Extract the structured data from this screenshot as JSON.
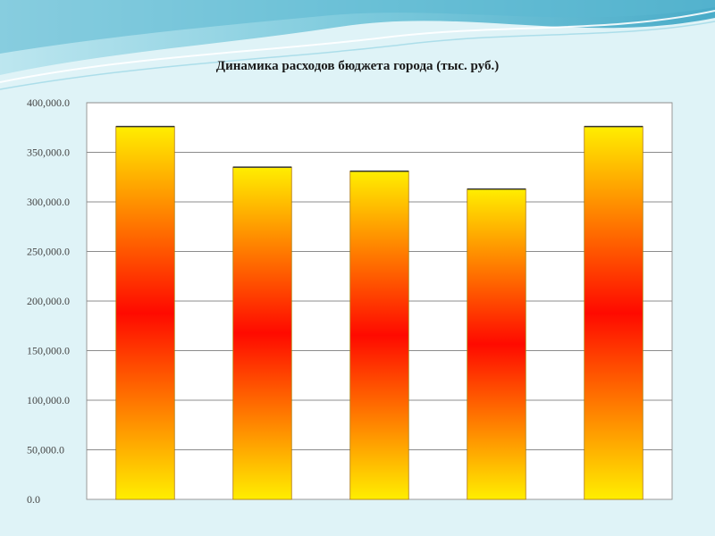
{
  "theme": {
    "background": "#dff3f7",
    "wave_color": "#8fd0df",
    "bar_top": "#ffee00",
    "bar_mid": "#ff0a00",
    "plot_background": "#ffffff",
    "gridline": "#8c8c8c"
  },
  "chart_data": {
    "type": "bar",
    "title": "Динамика расходов бюджета города (тыс. руб.)",
    "xlabel": "",
    "ylabel": "",
    "categories": [
      "",
      "",
      "",
      "",
      ""
    ],
    "values": [
      376000,
      335000,
      331000,
      313000,
      376000
    ],
    "ylim": [
      0,
      400000
    ],
    "yticks": [
      0,
      50000,
      100000,
      150000,
      200000,
      250000,
      300000,
      350000,
      400000
    ],
    "ytick_labels": [
      "0.0",
      "50,000.0",
      "100,000.0",
      "150,000.0",
      "200,000.0",
      "250,000.0",
      "300,000.0",
      "350,000.0",
      "400,000.0"
    ],
    "grid": true,
    "legend": "none"
  }
}
